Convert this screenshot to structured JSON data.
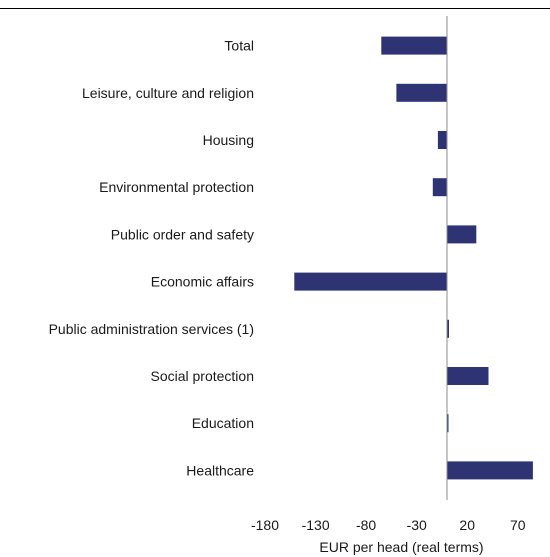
{
  "chart_data": {
    "type": "bar",
    "orientation": "horizontal",
    "categories": [
      "Total",
      "Leisure, culture and religion",
      "Housing",
      "Environmental protection",
      "Public order and safety",
      "Economic affairs",
      "Public administration services (1)",
      "Social protection",
      "Education",
      "Healthcare"
    ],
    "values": [
      -65,
      -50,
      -9,
      -14,
      29,
      -151,
      2,
      41,
      1,
      85
    ],
    "xlabel": "EUR per head (real terms)",
    "ylabel": "",
    "xlim": [
      -180,
      90
    ],
    "xticks": [
      -180,
      -130,
      -80,
      -30,
      20,
      70
    ],
    "grid": false,
    "bar_color": "#2e3374",
    "axis_color": "#8c8c8c"
  }
}
